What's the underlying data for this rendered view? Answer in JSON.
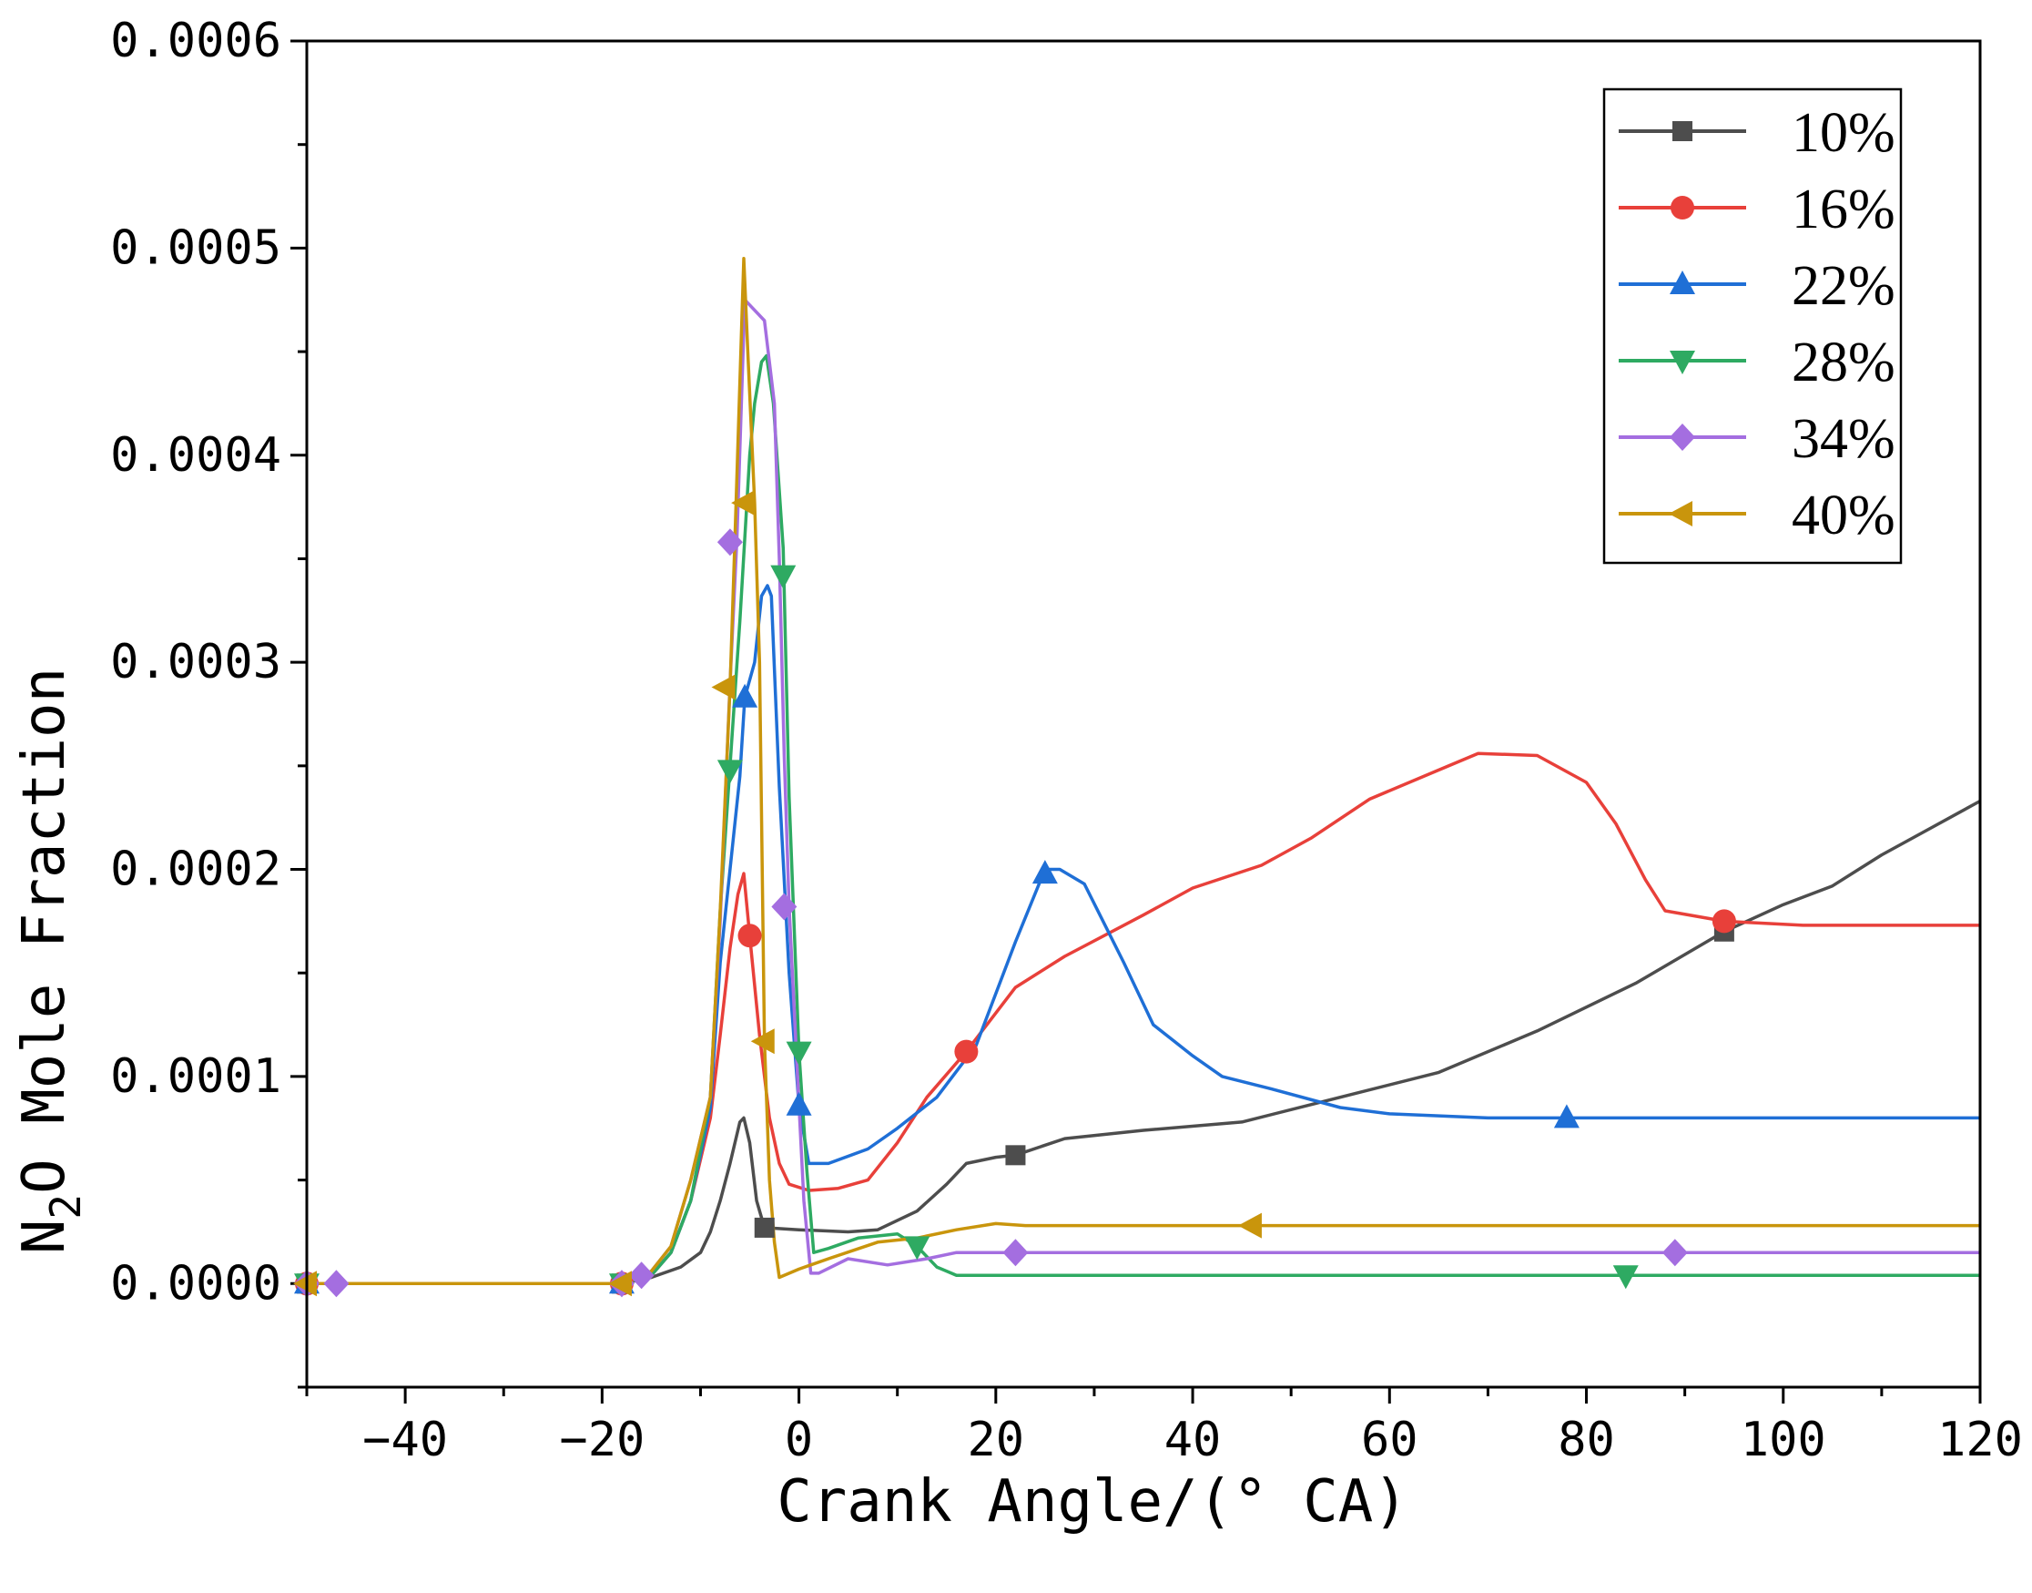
{
  "chart_data": {
    "type": "line",
    "title": "",
    "xlabel": "Crank Angle/(° CA)",
    "ylabel_parts": {
      "base": "N",
      "subscript": "2",
      "rest": "O Mole Fraction"
    },
    "xlim": [
      -50,
      120
    ],
    "ylim": [
      -5e-05,
      0.0006
    ],
    "xticks": [
      -40,
      -20,
      0,
      20,
      40,
      60,
      80,
      100,
      120
    ],
    "xtick_labels": [
      "−40",
      "−20",
      "0",
      "20",
      "40",
      "60",
      "80",
      "100",
      "120"
    ],
    "yticks": [
      0,
      0.0001,
      0.0002,
      0.0003,
      0.0004,
      0.0005,
      0.0006
    ],
    "ytick_labels": [
      "0.0000",
      "0.0001",
      "0.0002",
      "0.0003",
      "0.0004",
      "0.0005",
      "0.0006"
    ],
    "legend_position": "top-right",
    "series": [
      {
        "name": "10%",
        "color": "#4d4d4d",
        "marker": "square",
        "points": [
          [
            -50,
            0
          ],
          [
            -18,
            0
          ],
          [
            -15,
            3e-06
          ],
          [
            -12,
            8e-06
          ],
          [
            -10,
            1.5e-05
          ],
          [
            -9,
            2.5e-05
          ],
          [
            -8,
            4e-05
          ],
          [
            -7,
            5.8e-05
          ],
          [
            -6,
            7.8e-05
          ],
          [
            -5.6,
            8e-05
          ],
          [
            -5,
            6.8e-05
          ],
          [
            -4.3,
            4e-05
          ],
          [
            -3.5,
            2.7e-05
          ],
          [
            0,
            2.6e-05
          ],
          [
            5,
            2.5e-05
          ],
          [
            8,
            2.6e-05
          ],
          [
            12,
            3.5e-05
          ],
          [
            15,
            4.8e-05
          ],
          [
            17,
            5.8e-05
          ],
          [
            20,
            6.1e-05
          ],
          [
            22,
            6.2e-05
          ],
          [
            27,
            7e-05
          ],
          [
            35,
            7.4e-05
          ],
          [
            45,
            7.8e-05
          ],
          [
            55,
            9e-05
          ],
          [
            65,
            0.000102
          ],
          [
            75,
            0.000122
          ],
          [
            85,
            0.000145
          ],
          [
            94,
            0.00017
          ],
          [
            100,
            0.000183
          ],
          [
            105,
            0.000192
          ],
          [
            110,
            0.000207
          ],
          [
            115,
            0.00022
          ],
          [
            120,
            0.000233
          ]
        ],
        "markers": [
          [
            -50,
            0
          ],
          [
            -18,
            0
          ],
          [
            -3.5,
            2.7e-05
          ],
          [
            22,
            6.2e-05
          ],
          [
            94,
            0.00017
          ]
        ]
      },
      {
        "name": "16%",
        "color": "#e8403a",
        "marker": "circle",
        "points": [
          [
            -50,
            0
          ],
          [
            -18,
            0
          ],
          [
            -15,
            4e-06
          ],
          [
            -13,
            1.5e-05
          ],
          [
            -11,
            4e-05
          ],
          [
            -9,
            8e-05
          ],
          [
            -8,
            0.00012
          ],
          [
            -7,
            0.000162
          ],
          [
            -6.2,
            0.000188
          ],
          [
            -5.6,
            0.000198
          ],
          [
            -5,
            0.000168
          ],
          [
            -4,
            0.00012
          ],
          [
            -3,
            8e-05
          ],
          [
            -2,
            5.8e-05
          ],
          [
            -1,
            4.8e-05
          ],
          [
            1,
            4.5e-05
          ],
          [
            4,
            4.6e-05
          ],
          [
            7,
            5e-05
          ],
          [
            10,
            6.8e-05
          ],
          [
            13,
            9e-05
          ],
          [
            17,
            0.000112
          ],
          [
            22,
            0.000143
          ],
          [
            27,
            0.000158
          ],
          [
            35,
            0.000178
          ],
          [
            40,
            0.000191
          ],
          [
            47,
            0.000202
          ],
          [
            52,
            0.000215
          ],
          [
            58,
            0.000234
          ],
          [
            65,
            0.000248
          ],
          [
            69,
            0.000256
          ],
          [
            75,
            0.000255
          ],
          [
            80,
            0.000242
          ],
          [
            83,
            0.000222
          ],
          [
            86,
            0.000195
          ],
          [
            88,
            0.00018
          ],
          [
            94,
            0.000175
          ],
          [
            102,
            0.000173
          ],
          [
            120,
            0.000173
          ]
        ],
        "markers": [
          [
            -50,
            0
          ],
          [
            -18,
            0
          ],
          [
            -5,
            0.000168
          ],
          [
            17,
            0.000112
          ],
          [
            94,
            0.000175
          ]
        ]
      },
      {
        "name": "22%",
        "color": "#1f6fd6",
        "marker": "triangle-up",
        "points": [
          [
            -50,
            0
          ],
          [
            -18,
            0
          ],
          [
            -15,
            4e-06
          ],
          [
            -13,
            1.5e-05
          ],
          [
            -11,
            4e-05
          ],
          [
            -9,
            8.5e-05
          ],
          [
            -8,
            0.000155
          ],
          [
            -7,
            0.0002
          ],
          [
            -6,
            0.000245
          ],
          [
            -5.5,
            0.000283
          ],
          [
            -4.5,
            0.0003
          ],
          [
            -3.8,
            0.000332
          ],
          [
            -3.2,
            0.000337
          ],
          [
            -2.8,
            0.000332
          ],
          [
            -2,
            0.00024
          ],
          [
            -1,
            0.00015
          ],
          [
            0,
            8.6e-05
          ],
          [
            1,
            5.8e-05
          ],
          [
            3,
            5.8e-05
          ],
          [
            7,
            6.5e-05
          ],
          [
            10,
            7.5e-05
          ],
          [
            14,
            9e-05
          ],
          [
            18,
            0.000115
          ],
          [
            22,
            0.000165
          ],
          [
            25,
            0.0002
          ],
          [
            26.5,
            0.0002
          ],
          [
            29,
            0.000193
          ],
          [
            33,
            0.000155
          ],
          [
            36,
            0.000125
          ],
          [
            40,
            0.00011
          ],
          [
            43,
            0.0001
          ],
          [
            48,
            9.4e-05
          ],
          [
            55,
            8.5e-05
          ],
          [
            60,
            8.2e-05
          ],
          [
            70,
            8e-05
          ],
          [
            78,
            8e-05
          ],
          [
            120,
            8e-05
          ]
        ],
        "markers": [
          [
            -50,
            0
          ],
          [
            -18,
            0
          ],
          [
            -5.5,
            0.000283
          ],
          [
            0,
            8.6e-05
          ],
          [
            25,
            0.000198
          ],
          [
            78,
            8e-05
          ]
        ]
      },
      {
        "name": "28%",
        "color": "#2eaa62",
        "marker": "triangle-down",
        "points": [
          [
            -50,
            0
          ],
          [
            -18,
            0
          ],
          [
            -15,
            4e-06
          ],
          [
            -13,
            1.5e-05
          ],
          [
            -11,
            4e-05
          ],
          [
            -9,
            9e-05
          ],
          [
            -8,
            0.00018
          ],
          [
            -7,
            0.00025
          ],
          [
            -6,
            0.00032
          ],
          [
            -5,
            0.0004
          ],
          [
            -4.5,
            0.000425
          ],
          [
            -3.8,
            0.000445
          ],
          [
            -3.3,
            0.000448
          ],
          [
            -2.6,
            0.000425
          ],
          [
            -1.6,
            0.000355
          ],
          [
            -1,
            0.000235
          ],
          [
            0,
            0.000112
          ],
          [
            0.8,
            5.5e-05
          ],
          [
            1.5,
            1.5e-05
          ],
          [
            3,
            1.7e-05
          ],
          [
            6,
            2.2e-05
          ],
          [
            10,
            2.4e-05
          ],
          [
            12,
            1.8e-05
          ],
          [
            14,
            8e-06
          ],
          [
            16,
            4e-06
          ],
          [
            84,
            4e-06
          ],
          [
            120,
            4e-06
          ]
        ],
        "markers": [
          [
            -50,
            0
          ],
          [
            -18,
            0
          ],
          [
            -7,
            0.000248
          ],
          [
            -1.6,
            0.000342
          ],
          [
            0,
            0.000112
          ],
          [
            12,
            1.8e-05
          ],
          [
            84,
            4e-06
          ]
        ]
      },
      {
        "name": "34%",
        "color": "#a46ee0",
        "marker": "diamond",
        "points": [
          [
            -50,
            0
          ],
          [
            -18,
            0
          ],
          [
            -15,
            6e-06
          ],
          [
            -13,
            1.8e-05
          ],
          [
            -11,
            5e-05
          ],
          [
            -9,
            9e-05
          ],
          [
            -8,
            0.000175
          ],
          [
            -7,
            0.00029
          ],
          [
            -6.3,
            0.00036
          ],
          [
            -5.5,
            0.000475
          ],
          [
            -3.5,
            0.000465
          ],
          [
            -2.5,
            0.000425
          ],
          [
            -2,
            0.00035
          ],
          [
            -1.5,
            0.000255
          ],
          [
            -1,
            0.000182
          ],
          [
            -0.3,
            0.000115
          ],
          [
            0.5,
            4e-05
          ],
          [
            1.2,
            5e-06
          ],
          [
            2,
            5e-06
          ],
          [
            5,
            1.2e-05
          ],
          [
            9,
            9e-06
          ],
          [
            13,
            1.2e-05
          ],
          [
            16,
            1.5e-05
          ],
          [
            22,
            1.5e-05
          ],
          [
            89,
            1.5e-05
          ],
          [
            120,
            1.5e-05
          ]
        ],
        "markers": [
          [
            -50,
            0
          ],
          [
            -47,
            0
          ],
          [
            -18,
            0
          ],
          [
            -16,
            4e-06
          ],
          [
            -7,
            0.000358
          ],
          [
            -1.5,
            0.000182
          ],
          [
            22,
            1.5e-05
          ],
          [
            89,
            1.5e-05
          ]
        ]
      },
      {
        "name": "40%",
        "color": "#c9950c",
        "marker": "triangle-left",
        "points": [
          [
            -50,
            0
          ],
          [
            -18,
            0
          ],
          [
            -15,
            6e-06
          ],
          [
            -13,
            1.8e-05
          ],
          [
            -11,
            5e-05
          ],
          [
            -9,
            9e-05
          ],
          [
            -8,
            0.00018
          ],
          [
            -7,
            0.000288
          ],
          [
            -6.5,
            0.00036
          ],
          [
            -5.6,
            0.000495
          ],
          [
            -5.2,
            0.00045
          ],
          [
            -4.5,
            0.000377
          ],
          [
            -4,
            0.0003
          ],
          [
            -3.5,
            0.000117
          ],
          [
            -3,
            5e-05
          ],
          [
            -2.5,
            2e-05
          ],
          [
            -2,
            3e-06
          ],
          [
            0,
            7e-06
          ],
          [
            3,
            1.2e-05
          ],
          [
            8,
            2e-05
          ],
          [
            12,
            2.2e-05
          ],
          [
            16,
            2.6e-05
          ],
          [
            20,
            2.9e-05
          ],
          [
            23,
            2.8e-05
          ],
          [
            46,
            2.8e-05
          ],
          [
            120,
            2.8e-05
          ]
        ],
        "markers": [
          [
            -50,
            0
          ],
          [
            -18,
            0
          ],
          [
            -7.5,
            0.000288
          ],
          [
            -5.5,
            0.000377
          ],
          [
            -3.5,
            0.000117
          ],
          [
            46,
            2.8e-05
          ]
        ]
      }
    ]
  }
}
